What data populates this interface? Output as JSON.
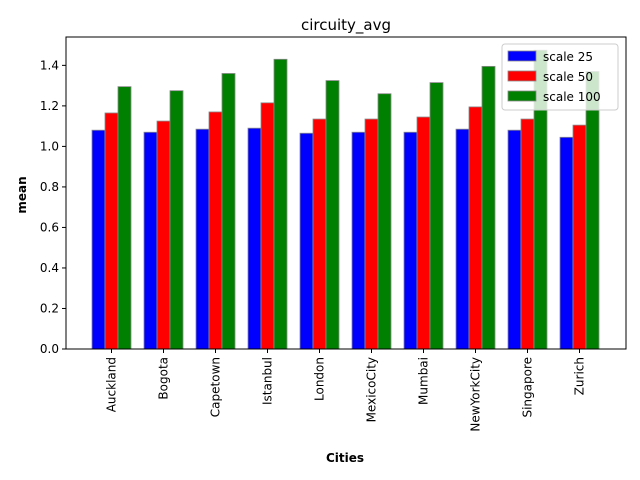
{
  "chart_data": {
    "type": "bar",
    "title": "circuity_avg",
    "xlabel": "Cities",
    "ylabel": "mean",
    "categories": [
      "Auckland",
      "Bogota",
      "Capetown",
      "Istanbul",
      "London",
      "MexicoCity",
      "Mumbai",
      "NewYorkCity",
      "Singapore",
      "Zurich"
    ],
    "series": [
      {
        "name": "scale 25",
        "color": "#0000ff",
        "values": [
          1.08,
          1.07,
          1.085,
          1.09,
          1.065,
          1.07,
          1.07,
          1.085,
          1.08,
          1.045
        ]
      },
      {
        "name": "scale 50",
        "color": "#ff0000",
        "values": [
          1.165,
          1.125,
          1.17,
          1.215,
          1.135,
          1.135,
          1.145,
          1.195,
          1.135,
          1.105
        ]
      },
      {
        "name": "scale 100",
        "color": "#008000",
        "values": [
          1.295,
          1.275,
          1.36,
          1.43,
          1.325,
          1.26,
          1.315,
          1.395,
          1.475,
          1.37
        ]
      }
    ],
    "ylim": [
      0,
      1.54
    ],
    "yticks": [
      "0.0",
      "0.2",
      "0.4",
      "0.6",
      "0.8",
      "1.0",
      "1.2",
      "1.4"
    ],
    "legend": "top-right",
    "grid": false
  }
}
